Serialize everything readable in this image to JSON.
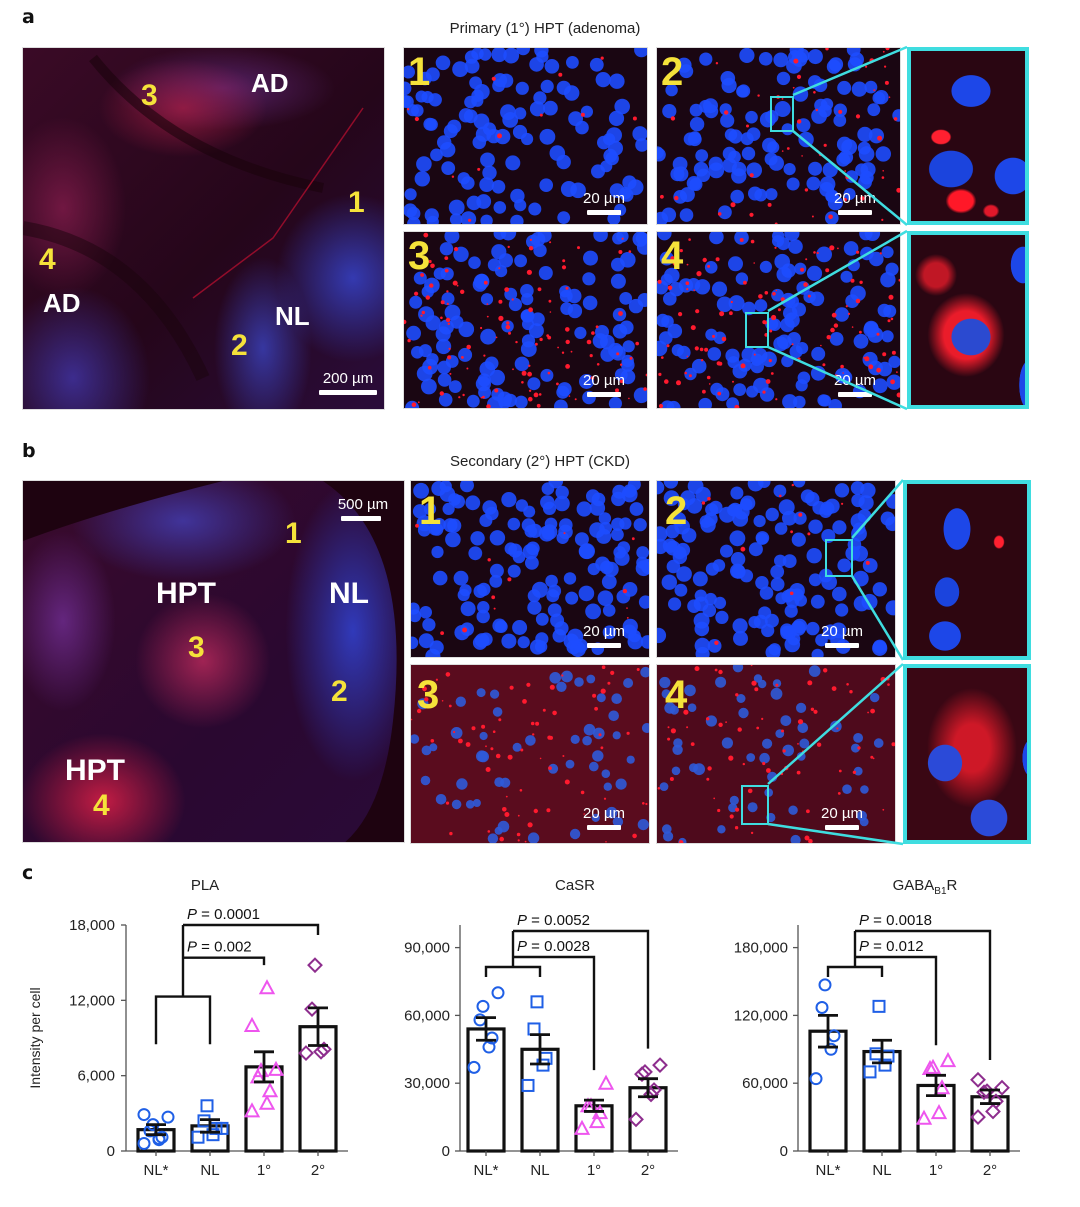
{
  "figure": {
    "panel_a": {
      "letter": "a",
      "title": "Primary (1°) HPT (adenoma)",
      "overview": {
        "labels": [
          {
            "text": "3",
            "color": "yellow"
          },
          {
            "text": "AD",
            "color": "white"
          },
          {
            "text": "1",
            "color": "yellow"
          },
          {
            "text": "4",
            "color": "yellow"
          },
          {
            "text": "AD",
            "color": "white"
          },
          {
            "text": "NL",
            "color": "white"
          },
          {
            "text": "2",
            "color": "yellow"
          }
        ],
        "scale_bar": "200 µm"
      },
      "tiles": [
        {
          "number": "1",
          "scale_bar": "20 µm"
        },
        {
          "number": "2",
          "scale_bar": "20 µm"
        },
        {
          "number": "3",
          "scale_bar": "20 µm"
        },
        {
          "number": "4",
          "scale_bar": "20 µm"
        }
      ]
    },
    "panel_b": {
      "letter": "b",
      "title": "Secondary (2°) HPT (CKD)",
      "overview": {
        "labels": [
          {
            "text": "1",
            "color": "yellow"
          },
          {
            "text": "HPT",
            "color": "white"
          },
          {
            "text": "NL",
            "color": "white"
          },
          {
            "text": "3",
            "color": "yellow"
          },
          {
            "text": "2",
            "color": "yellow"
          },
          {
            "text": "HPT",
            "color": "white"
          },
          {
            "text": "4",
            "color": "yellow"
          }
        ],
        "scale_bar": "500 µm"
      },
      "tiles": [
        {
          "number": "1",
          "scale_bar": "20 µm"
        },
        {
          "number": "2",
          "scale_bar": "20 µm"
        },
        {
          "number": "3",
          "scale_bar": "20 µm"
        },
        {
          "number": "4",
          "scale_bar": "20 µm"
        }
      ]
    },
    "panel_c": {
      "letter": "c",
      "ylabel": "Intensity per cell"
    },
    "colors": {
      "nuclei_blue": "#1e4cff",
      "signal_red": "#ff1a2e",
      "inset_cyan": "#3fdde0",
      "label_yellow": "#f5e23a",
      "nl_star_blue": "#1f5fe6",
      "nl_blue": "#1f5fe6",
      "primary_pink": "#ee55ee",
      "secondary_purple": "#8e2e8e"
    }
  },
  "chart_data": [
    {
      "type": "bar",
      "title": "PLA",
      "xlabel": "",
      "ylabel": "Intensity per cell",
      "categories": [
        "NL*",
        "NL",
        "1°",
        "2°"
      ],
      "yticks": [
        0,
        6000,
        12000,
        18000
      ],
      "ytick_labels": [
        "0",
        "6,000",
        "12,000",
        "18,000"
      ],
      "ylim": [
        0,
        18000
      ],
      "means": [
        1700,
        2000,
        6700,
        9900
      ],
      "sem": [
        400,
        500,
        1200,
        1500
      ],
      "points": [
        [
          600,
          900,
          1100,
          1600,
          2100,
          2700,
          2900,
          1000
        ],
        [
          1100,
          1300,
          1800,
          2400,
          3600,
          1800
        ],
        [
          3200,
          3800,
          4800,
          5900,
          6400,
          6500,
          10000,
          13000
        ],
        [
          7800,
          7900,
          8100,
          11300,
          14800
        ]
      ],
      "markers": [
        "circle",
        "square",
        "triangle",
        "diamond"
      ],
      "comparisons": [
        {
          "groups": [
            "NL*+NL",
            "1°"
          ],
          "label": "P = 0.002"
        },
        {
          "groups": [
            "NL*+NL",
            "2°"
          ],
          "label": "P = 0.0001"
        }
      ],
      "grid": false
    },
    {
      "type": "bar",
      "title": "CaSR",
      "xlabel": "",
      "ylabel": "",
      "categories": [
        "NL*",
        "NL",
        "1°",
        "2°"
      ],
      "yticks": [
        0,
        30000,
        60000,
        90000
      ],
      "ytick_labels": [
        "0",
        "30,000",
        "60,000",
        "90,000"
      ],
      "ylim": [
        0,
        100000
      ],
      "means": [
        54000,
        45000,
        20000,
        28000
      ],
      "sem": [
        5000,
        6500,
        2500,
        4000
      ],
      "points": [
        [
          37000,
          46000,
          50000,
          58000,
          64000,
          70000
        ],
        [
          29000,
          38000,
          41000,
          54000,
          66000
        ],
        [
          10000,
          13000,
          17000,
          20000,
          20000,
          30000
        ],
        [
          14000,
          25000,
          27000,
          34000,
          35000,
          38000
        ]
      ],
      "markers": [
        "circle",
        "square",
        "triangle",
        "diamond"
      ],
      "comparisons": [
        {
          "groups": [
            "NL*+NL",
            "1°"
          ],
          "label": "P = 0.0028"
        },
        {
          "groups": [
            "NL*+NL",
            "2°"
          ],
          "label": "P = 0.0052"
        }
      ],
      "grid": false
    },
    {
      "type": "bar",
      "title": "GABA_B1R",
      "title_main": "GABA",
      "title_sub": "B1",
      "title_tail": "R",
      "xlabel": "",
      "ylabel": "",
      "categories": [
        "NL*",
        "NL",
        "1°",
        "2°"
      ],
      "yticks": [
        0,
        60000,
        120000,
        180000
      ],
      "ytick_labels": [
        "0",
        "60,000",
        "120,000",
        "180,000"
      ],
      "ylim": [
        0,
        200000
      ],
      "means": [
        106000,
        88000,
        58000,
        48000
      ],
      "sem": [
        14000,
        10000,
        9000,
        6000
      ],
      "points": [
        [
          64000,
          90000,
          102000,
          127000,
          147000
        ],
        [
          70000,
          76000,
          84000,
          86000,
          128000
        ],
        [
          29000,
          34000,
          56000,
          73000,
          74000,
          80000
        ],
        [
          30000,
          35000,
          44000,
          52000,
          53000,
          56000,
          63000
        ]
      ],
      "markers": [
        "circle",
        "square",
        "triangle",
        "diamond"
      ],
      "comparisons": [
        {
          "groups": [
            "NL*+NL",
            "1°"
          ],
          "label": "P = 0.012"
        },
        {
          "groups": [
            "NL*+NL",
            "2°"
          ],
          "label": "P = 0.0018"
        }
      ],
      "grid": false
    }
  ]
}
